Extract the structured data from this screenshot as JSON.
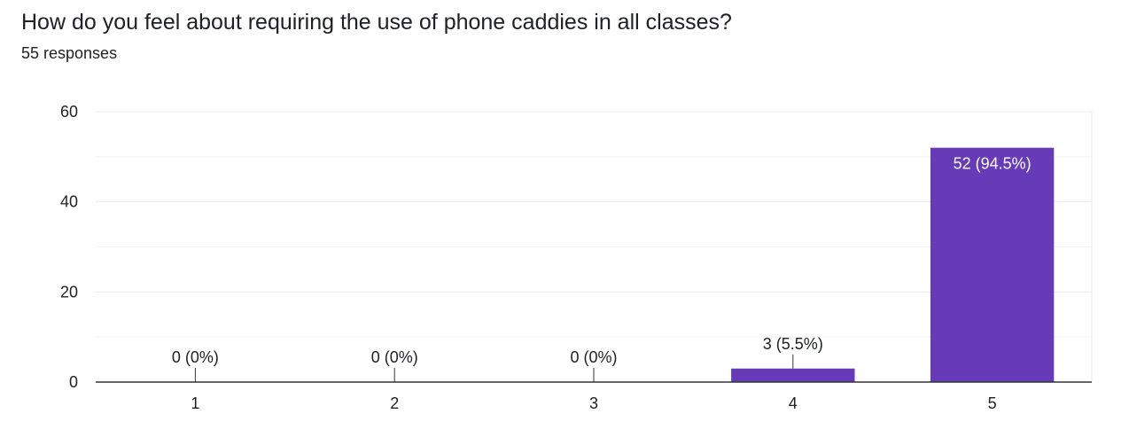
{
  "question": {
    "title": "How do you feel about requiring the use of phone caddies in all classes?",
    "responses_label": "55 responses"
  },
  "colors": {
    "bar": "#673ab7",
    "grid": "#ebebeb",
    "minor_grid": "#f3f3f3",
    "axis": "#333333",
    "text": "#202124",
    "label_inside": "#ffffff"
  },
  "chart_data": {
    "type": "bar",
    "title": "How do you feel about requiring the use of phone caddies in all classes?",
    "subtitle": "55 responses",
    "xlabel": "",
    "ylabel": "",
    "categories": [
      "1",
      "2",
      "3",
      "4",
      "5"
    ],
    "values": [
      0,
      0,
      0,
      3,
      52
    ],
    "data_labels": [
      "0 (0%)",
      "0 (0%)",
      "0 (0%)",
      "3 (5.5%)",
      "52 (94.5%)"
    ],
    "ylim": [
      0,
      60
    ],
    "yticks": [
      0,
      20,
      40,
      60
    ],
    "y_minor_ticks": [
      10,
      30,
      50
    ],
    "grid": true,
    "legend": "none"
  }
}
